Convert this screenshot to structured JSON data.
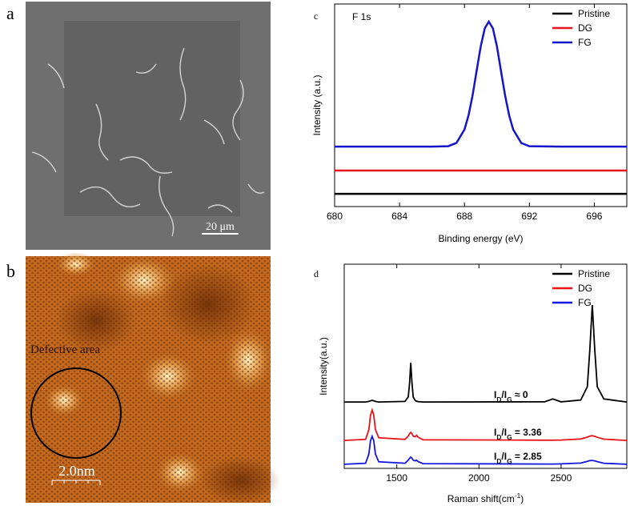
{
  "images": {
    "a": {
      "panel_label": "a",
      "scale_bar": "20 μm"
    },
    "b": {
      "panel_label": "b",
      "annotation": "Defective area",
      "scale_bar": "2.0nm"
    }
  },
  "chart_data": [
    {
      "type": "line",
      "panel_label": "c",
      "title": "F 1s",
      "xlabel": "Binding energy (eV)",
      "ylabel": "Intensity (a.u.)",
      "x": [
        680,
        682,
        684,
        686,
        687,
        687.5,
        688,
        688.25,
        688.5,
        688.75,
        689,
        689.25,
        689.5,
        689.75,
        690,
        690.25,
        690.5,
        690.75,
        691,
        691.5,
        692,
        694,
        696,
        698
      ],
      "series": [
        {
          "name": "Pristine",
          "color": "#000000",
          "values": [
            6.3,
            6.3,
            6.3,
            6.3,
            6.3,
            6.3,
            6.3,
            6.3,
            6.3,
            6.3,
            6.3,
            6.3,
            6.3,
            6.3,
            6.3,
            6.3,
            6.3,
            6.3,
            6.3,
            6.3,
            6.3,
            6.3,
            6.3,
            6.3
          ]
        },
        {
          "name": "DG",
          "color": "#e8141a",
          "values": [
            17.8,
            17.8,
            17.8,
            17.8,
            17.8,
            17.8,
            17.8,
            17.8,
            17.8,
            17.8,
            17.8,
            17.8,
            17.8,
            17.8,
            17.8,
            17.8,
            17.8,
            17.8,
            17.8,
            17.8,
            17.8,
            17.8,
            17.8,
            17.8
          ]
        },
        {
          "name": "FG",
          "color": "#1414c8",
          "values": [
            29.6,
            29.6,
            29.6,
            29.6,
            29.8,
            31.4,
            38.0,
            45.0,
            55.0,
            67.0,
            79.0,
            88.0,
            91.3,
            88.0,
            79.0,
            67.0,
            55.0,
            45.0,
            38.0,
            31.4,
            29.8,
            29.6,
            29.6,
            29.6
          ]
        }
      ],
      "xlim": [
        680,
        698
      ],
      "xticks": [
        680,
        684,
        688,
        692,
        696
      ],
      "ylim": [
        0,
        100
      ],
      "legend": "upper right"
    },
    {
      "type": "line",
      "panel_label": "d",
      "xlabel_parts": [
        "Raman shift(cm",
        "-1",
        ")"
      ],
      "ylabel": "Intensity(a.u.)",
      "x": [
        1180,
        1310,
        1330,
        1340,
        1350,
        1360,
        1370,
        1390,
        1550,
        1570,
        1578,
        1585,
        1592,
        1600,
        1612,
        1620,
        1630,
        1660,
        2400,
        2450,
        2500,
        2620,
        2660,
        2675,
        2690,
        2705,
        2720,
        2760,
        2900
      ],
      "series": [
        {
          "name": "Pristine",
          "color": "#000000",
          "values": [
            32.5,
            32.5,
            32.8,
            33.1,
            33.3,
            33.1,
            32.8,
            32.5,
            32.8,
            35,
            42,
            51.8,
            42,
            35,
            33.2,
            32.9,
            32.7,
            32.5,
            32.6,
            34,
            32.6,
            33.5,
            40,
            58,
            80,
            58,
            40,
            34,
            32.5
          ]
        },
        {
          "name": "DG",
          "color": "#e8141a",
          "values": [
            13.7,
            14.2,
            19,
            26,
            28.6,
            26,
            19,
            15,
            14.2,
            15.8,
            17,
            17.6,
            17,
            15.8,
            15.5,
            16.2,
            15.2,
            14,
            13.8,
            13.8,
            13.9,
            14.4,
            15.3,
            15.8,
            16,
            15.7,
            15.2,
            14.3,
            13.7
          ]
        },
        {
          "name": "FG",
          "color": "#1414e0",
          "values": [
            2,
            2.5,
            7,
            13.5,
            15.7,
            13.5,
            7,
            3.2,
            2.5,
            4,
            5,
            5.5,
            5,
            4,
            3.7,
            4,
            3.3,
            2.3,
            2.1,
            2.1,
            2.2,
            2.6,
            3.4,
            3.8,
            3.9,
            3.7,
            3.3,
            2.5,
            2
          ]
        }
      ],
      "annotations": [
        {
          "parts": [
            "I",
            "D",
            "/I",
            "G",
            " ≈  0"
          ]
        },
        {
          "parts": [
            "I",
            "D",
            "/I",
            "G",
            " = 3.36"
          ]
        },
        {
          "parts": [
            "I",
            "D",
            "/I",
            "G",
            " = 2.85"
          ]
        }
      ],
      "xlim": [
        1180,
        2900
      ],
      "xticks": [
        1500,
        2000,
        2500
      ],
      "ylim": [
        0,
        100
      ],
      "legend": "upper right"
    }
  ]
}
